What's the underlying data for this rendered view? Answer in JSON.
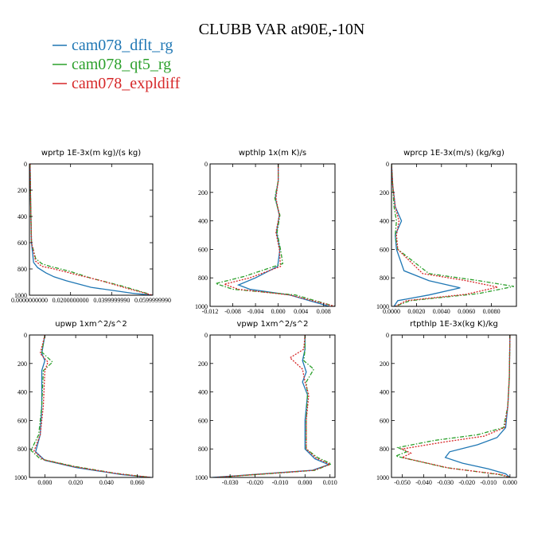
{
  "figure_title": "CLUBB VAR at90E,-10N",
  "legend": [
    {
      "name": "cam078_dflt_rg",
      "color": "#1f77b4",
      "dash": "solid"
    },
    {
      "name": "cam078_qt5_rg",
      "color": "#2ca02c",
      "dash": "dashdot"
    },
    {
      "name": "cam078_expldiff",
      "color": "#d62728",
      "dash": "dotted"
    }
  ],
  "chart_data": [
    {
      "type": "line",
      "title": "wprtp  1E-3x(m kg)/(s kg)",
      "xlim": [
        0,
        0.06
      ],
      "ylim": [
        0,
        1000
      ],
      "xticks": [
        0.0,
        0.02,
        0.04,
        0.06
      ],
      "xtick_labels": [
        "0.0000000000",
        "0.0200000000",
        "0.0399999990",
        "0.0599999990"
      ],
      "yticks": [
        0,
        200,
        400,
        600,
        800,
        1000
      ],
      "ytick_labels": [
        "0",
        "200",
        "400",
        "600",
        "800",
        "1000"
      ],
      "series": [
        {
          "color": "#1f77b4",
          "dash": "solid",
          "x": [
            0.0003,
            0.0006,
            0.001,
            0.002,
            0.004,
            0.008,
            0.012,
            0.018,
            0.03,
            0.05,
            0.06
          ],
          "y": [
            0,
            300,
            600,
            750,
            790,
            830,
            860,
            890,
            940,
            985,
            1000
          ]
        },
        {
          "color": "#2ca02c",
          "dash": "dashdot",
          "x": [
            0.0003,
            0.0006,
            0.001,
            0.003,
            0.006,
            0.01,
            0.02,
            0.03,
            0.045,
            0.058
          ],
          "y": [
            0,
            300,
            600,
            720,
            760,
            780,
            820,
            870,
            930,
            990
          ]
        },
        {
          "color": "#d62728",
          "dash": "dotted",
          "x": [
            0.0003,
            0.0006,
            0.001,
            0.003,
            0.006,
            0.012,
            0.022,
            0.035,
            0.048,
            0.06
          ],
          "y": [
            0,
            300,
            600,
            740,
            780,
            800,
            840,
            890,
            950,
            1000
          ]
        }
      ]
    },
    {
      "type": "line",
      "title": "wpthlp  1x(m K)/s",
      "xlim": [
        -0.012,
        0.01
      ],
      "ylim": [
        0,
        1000
      ],
      "xticks": [
        -0.012,
        -0.008,
        -0.004,
        0.0,
        0.004,
        0.008
      ],
      "xtick_labels": [
        "-0.012",
        "-0.008",
        "-0.004",
        "0.000",
        "0.004",
        "0.008"
      ],
      "yticks": [
        0,
        200,
        400,
        600,
        800,
        1000
      ],
      "ytick_labels": [
        "0",
        "200",
        "400",
        "600",
        "800",
        "1000"
      ],
      "series": [
        {
          "color": "#1f77b4",
          "dash": "solid",
          "x": [
            0.0,
            0.0,
            -0.0005,
            0.0002,
            -0.0003,
            0.0003,
            -0.0001,
            -0.004,
            -0.007,
            -0.005,
            0.002,
            0.009
          ],
          "y": [
            0,
            120,
            240,
            360,
            480,
            600,
            720,
            800,
            850,
            880,
            920,
            1000
          ]
        },
        {
          "color": "#2ca02c",
          "dash": "dashdot",
          "x": [
            0.0,
            0.0,
            -0.0006,
            0.0003,
            -0.0002,
            0.0004,
            0.0008,
            -0.006,
            -0.011,
            -0.008,
            0.003,
            0.01
          ],
          "y": [
            0,
            120,
            240,
            360,
            480,
            600,
            700,
            790,
            840,
            880,
            920,
            1000
          ]
        },
        {
          "color": "#d62728",
          "dash": "dotted",
          "x": [
            0.0,
            0.0,
            -0.0004,
            0.0002,
            -0.0004,
            0.0002,
            0.0004,
            -0.005,
            -0.0095,
            -0.007,
            0.002,
            0.01
          ],
          "y": [
            0,
            120,
            240,
            360,
            480,
            600,
            720,
            800,
            845,
            880,
            920,
            1000
          ]
        }
      ]
    },
    {
      "type": "line",
      "title": "wprcp  1E-3x(m/s) (kg/kg)",
      "xlim": [
        0,
        0.01
      ],
      "ylim": [
        0,
        1000
      ],
      "xticks": [
        0.0,
        0.002,
        0.004,
        0.006,
        0.008
      ],
      "xtick_labels": [
        "0.0000",
        "0.0020",
        "0.0040",
        "0.0060",
        "0.0080"
      ],
      "yticks": [
        0,
        200,
        400,
        600,
        800,
        1000
      ],
      "ytick_labels": [
        "0",
        "200",
        "400",
        "600",
        "800",
        "1000"
      ],
      "series": [
        {
          "color": "#1f77b4",
          "dash": "solid",
          "x": [
            0.0,
            0.0001,
            0.0003,
            0.0008,
            0.0003,
            0.0004,
            0.001,
            0.003,
            0.0055,
            0.003,
            0.0005,
            0.0002
          ],
          "y": [
            0,
            150,
            300,
            400,
            500,
            600,
            750,
            820,
            870,
            920,
            960,
            1000
          ]
        },
        {
          "color": "#2ca02c",
          "dash": "dashdot",
          "x": [
            0.0,
            0.0001,
            0.0002,
            0.0004,
            0.0003,
            0.0005,
            0.003,
            0.007,
            0.0098,
            0.007,
            0.0015,
            0.0003
          ],
          "y": [
            0,
            150,
            300,
            400,
            500,
            600,
            770,
            820,
            860,
            910,
            960,
            1000
          ]
        },
        {
          "color": "#d62728",
          "dash": "dotted",
          "x": [
            0.0,
            0.0001,
            0.0003,
            0.0006,
            0.0004,
            0.0005,
            0.0025,
            0.006,
            0.0085,
            0.006,
            0.0012,
            0.0003
          ],
          "y": [
            0,
            150,
            300,
            400,
            500,
            600,
            770,
            820,
            865,
            915,
            960,
            1000
          ]
        }
      ]
    },
    {
      "type": "line",
      "title": "upwp  1xm^2/s^2",
      "xlim": [
        -0.01,
        0.07
      ],
      "ylim": [
        0,
        1000
      ],
      "xticks": [
        0.0,
        0.02,
        0.04,
        0.06
      ],
      "xtick_labels": [
        "0.000",
        "0.020",
        "0.040",
        "0.060"
      ],
      "yticks": [
        0,
        200,
        400,
        600,
        800,
        1000
      ],
      "ytick_labels": [
        "0",
        "200",
        "400",
        "600",
        "800",
        "1000"
      ],
      "series": [
        {
          "color": "#1f77b4",
          "dash": "solid",
          "x": [
            0.0,
            -0.002,
            0.0,
            -0.002,
            -0.002,
            -0.003,
            -0.006,
            0.0,
            0.02,
            0.05,
            0.069
          ],
          "y": [
            0,
            130,
            180,
            250,
            500,
            700,
            820,
            880,
            930,
            980,
            1000
          ]
        },
        {
          "color": "#2ca02c",
          "dash": "dashdot",
          "x": [
            0.0,
            -0.002,
            0.005,
            -0.001,
            -0.002,
            -0.004,
            -0.009,
            -0.003,
            0.018,
            0.045,
            0.068
          ],
          "y": [
            0,
            120,
            190,
            250,
            500,
            700,
            810,
            870,
            920,
            970,
            1000
          ]
        },
        {
          "color": "#d62728",
          "dash": "dotted",
          "x": [
            0.0,
            -0.003,
            0.002,
            0.0,
            -0.001,
            -0.003,
            -0.007,
            -0.001,
            0.019,
            0.048,
            0.069
          ],
          "y": [
            0,
            130,
            190,
            250,
            500,
            700,
            815,
            875,
            925,
            975,
            1000
          ]
        }
      ]
    },
    {
      "type": "line",
      "title": "vpwp  1xm^2/s^2",
      "xlim": [
        -0.038,
        0.012
      ],
      "ylim": [
        0,
        1000
      ],
      "xticks": [
        -0.03,
        -0.02,
        -0.01,
        0.0,
        0.01
      ],
      "xtick_labels": [
        "-0.030",
        "-0.020",
        "-0.010",
        "0.000",
        "0.010"
      ],
      "yticks": [
        0,
        200,
        400,
        600,
        800,
        1000
      ],
      "ytick_labels": [
        "0",
        "200",
        "400",
        "600",
        "800",
        "1000"
      ],
      "series": [
        {
          "color": "#1f77b4",
          "dash": "solid",
          "x": [
            0.0,
            0.0,
            -0.001,
            0.0005,
            -0.001,
            0.001,
            0.0,
            0.0,
            0.004,
            0.0095,
            0.003,
            -0.037
          ],
          "y": [
            0,
            100,
            180,
            260,
            330,
            420,
            600,
            800,
            870,
            910,
            950,
            1000
          ]
        },
        {
          "color": "#2ca02c",
          "dash": "dashdot",
          "x": [
            0.0,
            0.0,
            -0.0005,
            0.0035,
            0.0005,
            0.001,
            0.0005,
            0.0005,
            0.005,
            0.0105,
            0.004,
            -0.035
          ],
          "y": [
            0,
            100,
            180,
            240,
            330,
            420,
            600,
            800,
            860,
            905,
            950,
            1000
          ]
        },
        {
          "color": "#d62728",
          "dash": "dotted",
          "x": [
            0.0,
            -0.0005,
            -0.006,
            -0.001,
            0.0,
            0.0015,
            0.0005,
            0.0005,
            0.0045,
            0.01,
            0.0035,
            -0.036
          ],
          "y": [
            0,
            100,
            160,
            240,
            330,
            420,
            600,
            800,
            865,
            908,
            950,
            1000
          ]
        }
      ]
    },
    {
      "type": "line",
      "title": "rtpthlp  1E-3x(kg K)/kg",
      "xlim": [
        -0.055,
        0.003
      ],
      "ylim": [
        0,
        1000
      ],
      "xticks": [
        -0.05,
        -0.04,
        -0.03,
        -0.02,
        -0.01,
        0.0
      ],
      "xtick_labels": [
        "-0.050",
        "-0.040",
        "-0.030",
        "-0.020",
        "-0.010",
        "0.000"
      ],
      "yticks": [
        0,
        200,
        400,
        600,
        800,
        1000
      ],
      "ytick_labels": [
        "0",
        "200",
        "400",
        "600",
        "800",
        "1000"
      ],
      "series": [
        {
          "color": "#1f77b4",
          "dash": "solid",
          "x": [
            0.0,
            -0.0003,
            -0.001,
            -0.002,
            -0.006,
            -0.015,
            -0.028,
            -0.03,
            -0.022,
            -0.01,
            -0.002,
            0.0
          ],
          "y": [
            0,
            300,
            500,
            650,
            720,
            770,
            820,
            860,
            900,
            940,
            975,
            1000
          ]
        },
        {
          "color": "#2ca02c",
          "dash": "dashdot",
          "x": [
            0.0,
            -0.0003,
            -0.001,
            -0.003,
            -0.015,
            -0.035,
            -0.052,
            -0.048,
            -0.053,
            -0.03,
            -0.005,
            0.0
          ],
          "y": [
            0,
            300,
            500,
            650,
            700,
            740,
            790,
            820,
            850,
            930,
            980,
            1000
          ]
        },
        {
          "color": "#d62728",
          "dash": "dotted",
          "x": [
            0.0,
            -0.0003,
            -0.001,
            -0.0025,
            -0.012,
            -0.03,
            -0.05,
            -0.046,
            -0.05,
            -0.028,
            -0.004,
            0.0
          ],
          "y": [
            0,
            300,
            500,
            650,
            710,
            750,
            800,
            830,
            860,
            935,
            980,
            1000
          ]
        }
      ]
    }
  ]
}
